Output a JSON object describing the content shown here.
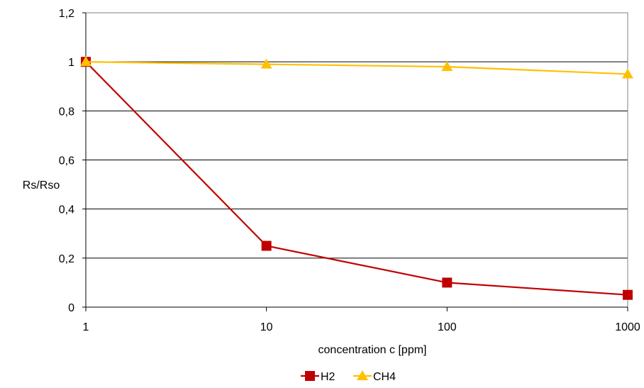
{
  "chart_data": {
    "type": "line",
    "title": "",
    "xlabel": "concentration c [ppm]",
    "ylabel": "Rs/Rso",
    "x_scale": "log",
    "x": [
      1,
      10,
      100,
      1000
    ],
    "x_tick_labels": [
      "1",
      "10",
      "100",
      "1000"
    ],
    "xlim": [
      1,
      1000
    ],
    "ylim": [
      0,
      1.2
    ],
    "y_ticks": [
      0,
      0.2,
      0.4,
      0.6,
      0.8,
      1,
      1.2
    ],
    "y_tick_labels": [
      "0",
      "0,2",
      "0,4",
      "0,6",
      "0,8",
      "1",
      "1,2"
    ],
    "grid": "horizontal",
    "legend_position": "bottom",
    "series": [
      {
        "name": "H2",
        "values": [
          1.0,
          0.25,
          0.1,
          0.05
        ],
        "color": "#C00000",
        "marker": "square"
      },
      {
        "name": "CH4",
        "values": [
          1.0,
          0.99,
          0.98,
          0.95
        ],
        "color": "#FFC000",
        "marker": "triangle"
      }
    ]
  }
}
